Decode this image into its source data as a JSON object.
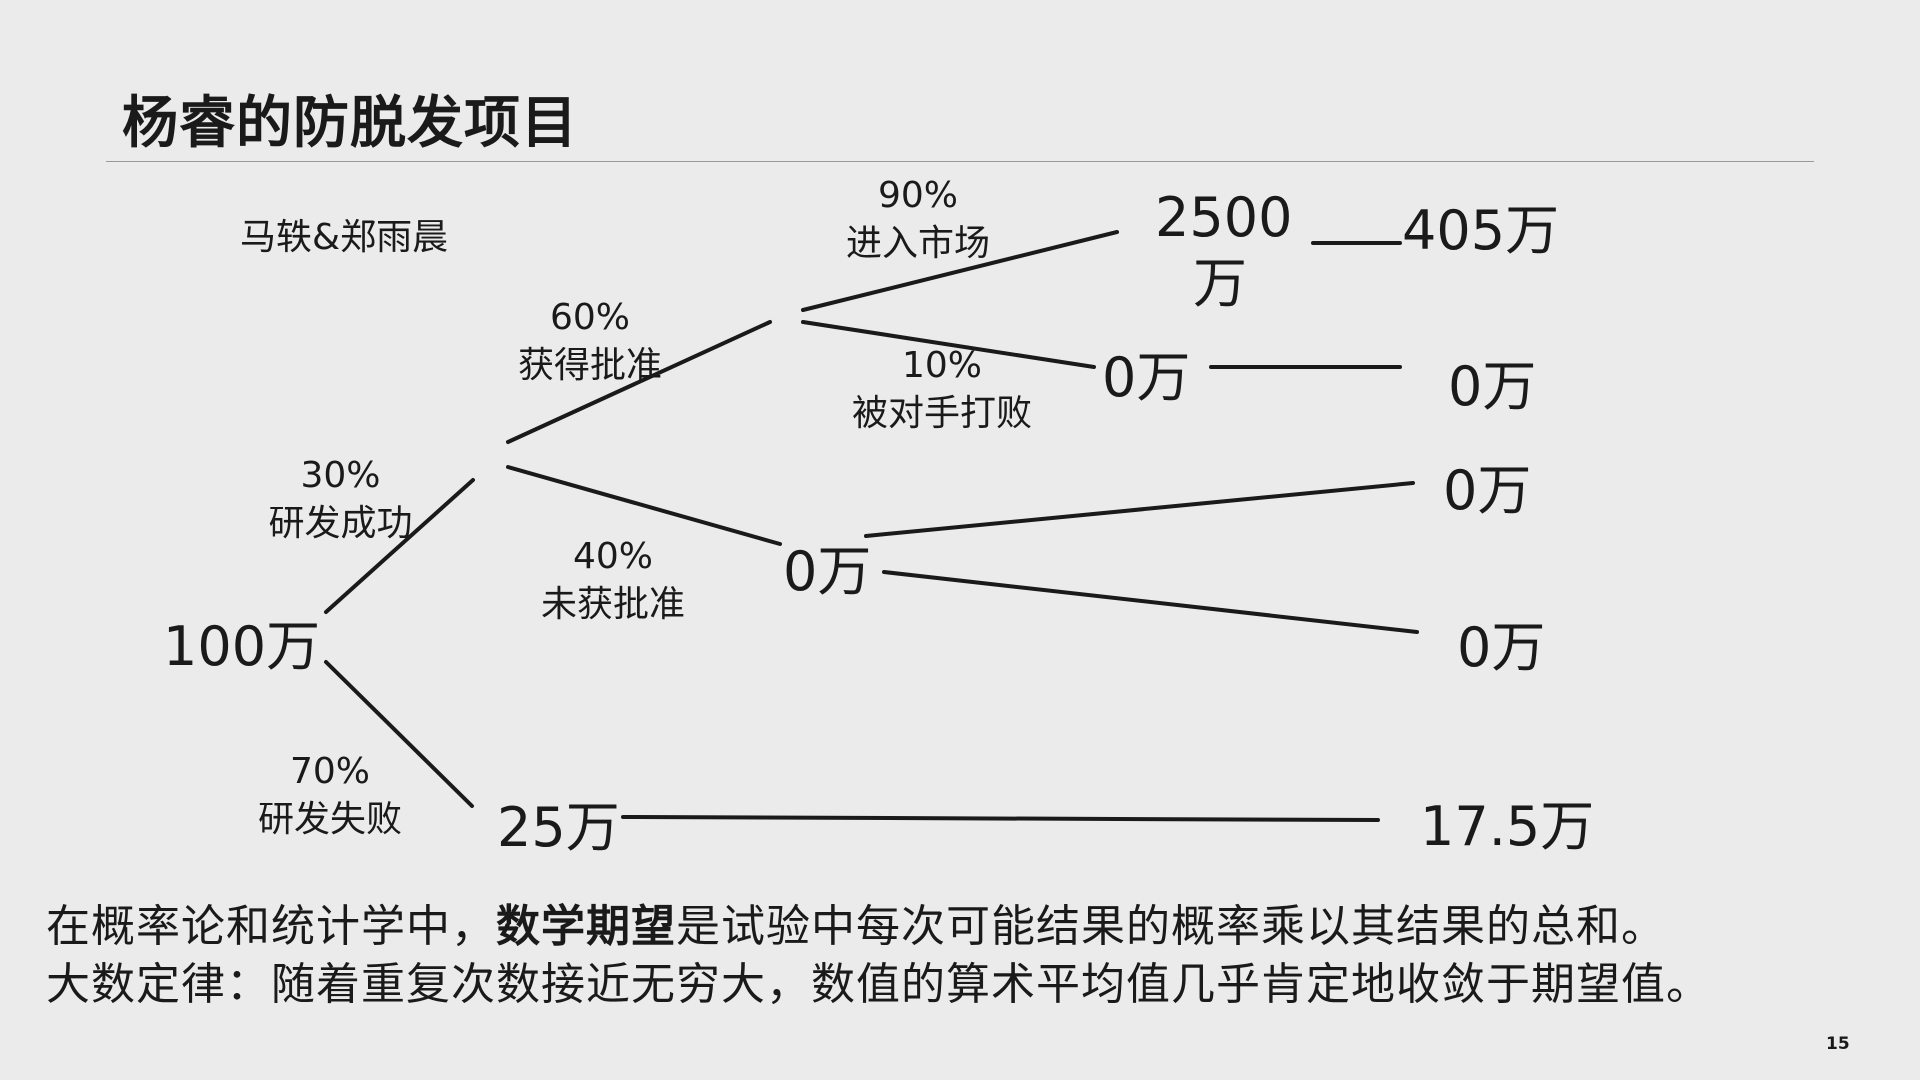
{
  "slide": {
    "title": "杨睿的防脱发项目",
    "authors": "马轶&郑雨晨",
    "page_number": "15"
  },
  "tree": {
    "root": "100万",
    "branch_rd_success": {
      "pct": "30%",
      "label": "研发成功"
    },
    "branch_rd_fail": {
      "pct": "70%",
      "label": "研发失败"
    },
    "branch_approved": {
      "pct": "60%",
      "label": "获得批准"
    },
    "branch_not_approved": {
      "pct": "40%",
      "label": "未获批准"
    },
    "branch_market": {
      "pct": "90%",
      "label": "进入市场"
    },
    "branch_beaten": {
      "pct": "10%",
      "label": "被对手打败"
    },
    "node_market_value": "2500万",
    "node_beaten_value": "0万",
    "node_not_approved_value": "0万",
    "node_fail_value": "25万",
    "expected_market": "405万",
    "expected_beaten": "0万",
    "expected_not_approved_a": "0万",
    "expected_not_approved_b": "0万",
    "expected_fail": "17.5万"
  },
  "notes": {
    "line1_prefix": "在概率论和统计学中，",
    "line1_bold": "数学期望",
    "line1_suffix": "是试验中每次可能结果的概率乘以其结果的总和。",
    "line2": "大数定律：随着重复次数接近无穷大，数值的算术平均值几乎肯定地收敛于期望值。"
  }
}
